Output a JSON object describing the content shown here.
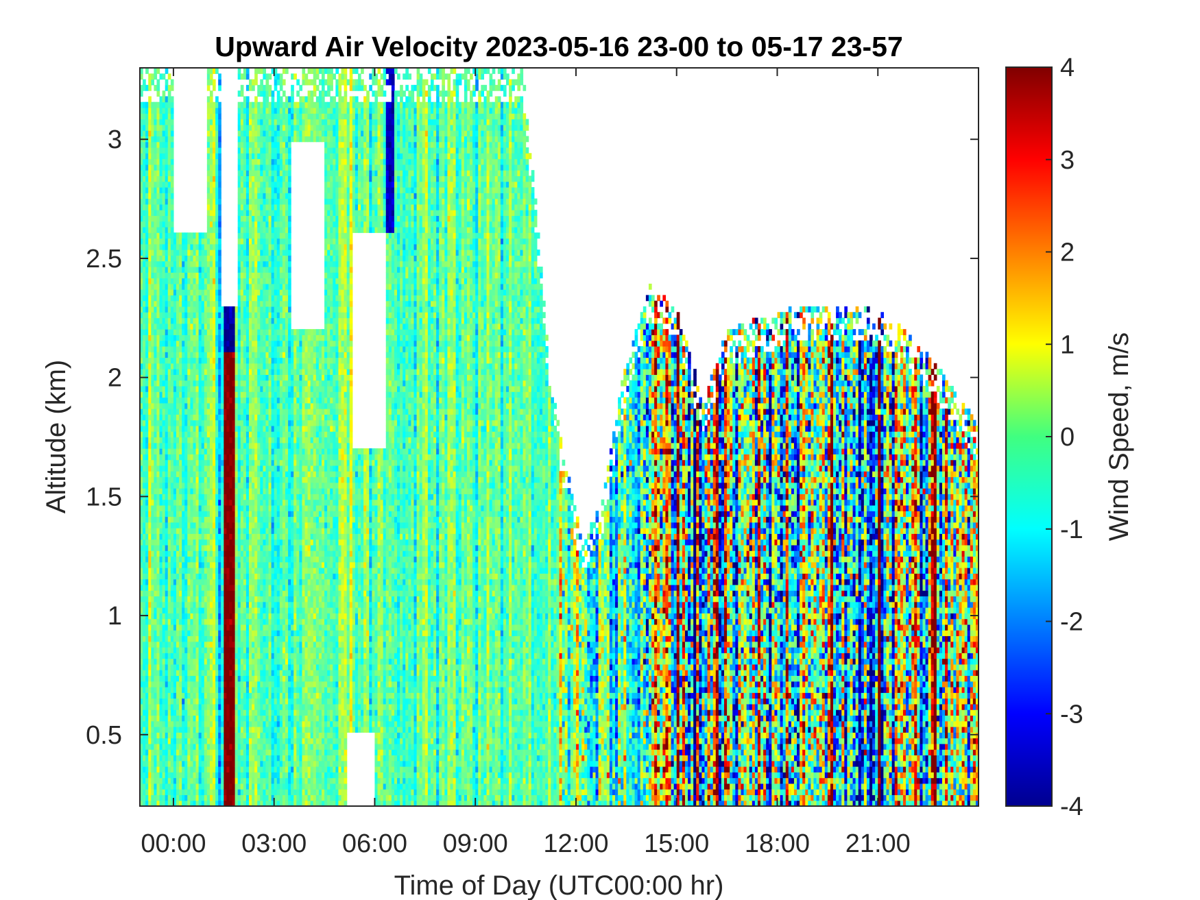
{
  "chart_data": {
    "type": "heatmap",
    "title": "Upward Air Velocity 2023-05-16 23-00 to 05-17 23-57",
    "xlabel": "Time of Day (UTC00:00 hr)",
    "ylabel": "Altitude (km)",
    "colorbar_label": "Wind Speed, m/s",
    "x_range_hours": [
      -1.0,
      24.0
    ],
    "y_range_km": [
      0.2,
      3.3
    ],
    "color_range": [
      -4,
      4
    ],
    "colormap": "jet",
    "x_ticks": [
      {
        "value": 0,
        "label": "00:00"
      },
      {
        "value": 3,
        "label": "03:00"
      },
      {
        "value": 6,
        "label": "06:00"
      },
      {
        "value": 9,
        "label": "09:00"
      },
      {
        "value": 12,
        "label": "12:00"
      },
      {
        "value": 15,
        "label": "15:00"
      },
      {
        "value": 18,
        "label": "18:00"
      },
      {
        "value": 21,
        "label": "21:00"
      }
    ],
    "y_ticks": [
      {
        "value": 0.5,
        "label": "0.5"
      },
      {
        "value": 1.0,
        "label": "1"
      },
      {
        "value": 1.5,
        "label": "1.5"
      },
      {
        "value": 2.0,
        "label": "2"
      },
      {
        "value": 2.5,
        "label": "2.5"
      },
      {
        "value": 3.0,
        "label": "3"
      }
    ],
    "colorbar_ticks": [
      {
        "value": 4,
        "label": "4"
      },
      {
        "value": 3,
        "label": "3"
      },
      {
        "value": 2,
        "label": "2"
      },
      {
        "value": 1,
        "label": "1"
      },
      {
        "value": 0,
        "label": "0"
      },
      {
        "value": -1,
        "label": "-1"
      },
      {
        "value": -2,
        "label": "-2"
      },
      {
        "value": -3,
        "label": "-3"
      },
      {
        "value": -4,
        "label": "-4"
      }
    ],
    "data_top_km": [
      {
        "t": -1.0,
        "top": 3.3
      },
      {
        "t": 10.4,
        "top": 3.3
      },
      {
        "t": 10.7,
        "top": 2.9
      },
      {
        "t": 11.2,
        "top": 2.1
      },
      {
        "t": 11.6,
        "top": 1.7
      },
      {
        "t": 12.2,
        "top": 1.3
      },
      {
        "t": 12.8,
        "top": 1.5
      },
      {
        "t": 13.4,
        "top": 2.0
      },
      {
        "t": 14.2,
        "top": 2.4
      },
      {
        "t": 15.0,
        "top": 2.3
      },
      {
        "t": 15.8,
        "top": 1.9
      },
      {
        "t": 16.5,
        "top": 2.2
      },
      {
        "t": 18.5,
        "top": 2.3
      },
      {
        "t": 21.0,
        "top": 2.3
      },
      {
        "t": 22.5,
        "top": 2.1
      },
      {
        "t": 24.0,
        "top": 1.8
      }
    ],
    "data_gaps": [
      {
        "t0": 0.0,
        "t1": 1.0,
        "z0": 2.6,
        "z1": 3.3
      },
      {
        "t0": 1.4,
        "t1": 1.9,
        "z0": 2.3,
        "z1": 3.3
      },
      {
        "t0": 3.5,
        "t1": 4.5,
        "z0": 2.2,
        "z1": 3.0
      },
      {
        "t0": 5.3,
        "t1": 6.3,
        "z0": 1.7,
        "z1": 2.6
      },
      {
        "t0": 5.2,
        "t1": 6.0,
        "z0": 0.2,
        "z1": 0.5
      }
    ],
    "features": [
      {
        "t0": 1.5,
        "t1": 1.8,
        "z0": 0.2,
        "z1": 2.1,
        "value": 4.0
      },
      {
        "t0": 1.5,
        "t1": 1.8,
        "z0": 2.1,
        "z1": 2.5,
        "value": -3.8
      },
      {
        "t0": 6.3,
        "t1": 6.6,
        "z0": 2.6,
        "z1": 3.3,
        "value": -3.5
      }
    ],
    "regimes": [
      {
        "t0": -1.0,
        "t1": 11.5,
        "mean": -0.3,
        "spread": 0.6
      },
      {
        "t0": 11.5,
        "t1": 14.0,
        "mean": -0.6,
        "spread": 1.4
      },
      {
        "t0": 14.0,
        "t1": 24.0,
        "mean": -0.5,
        "spread": 2.6
      }
    ]
  }
}
